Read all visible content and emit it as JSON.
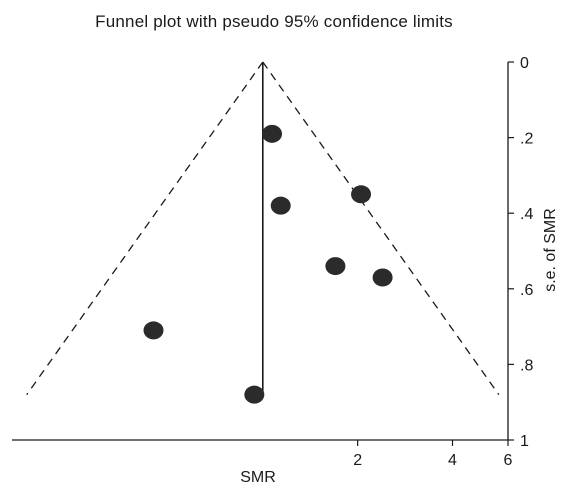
{
  "chart_data": {
    "type": "scatter",
    "title": "Funnel plot with pseudo 95% confidence limits",
    "xlabel": "SMR",
    "ylabel": "s.e. of SMR",
    "x_scale": "log",
    "xlim": [
      0.16,
      6
    ],
    "ylim": [
      0,
      1
    ],
    "y_reversed": true,
    "x_ticks": [
      2,
      4,
      6
    ],
    "y_ticks": [
      "0",
      ".2",
      ".4",
      ".6",
      ".8",
      "1"
    ],
    "y_tick_values": [
      0,
      0.2,
      0.4,
      0.6,
      0.8,
      1
    ],
    "pooled_estimate": 1.0,
    "confidence_limits_max_se": 0.88,
    "grid": false,
    "legend": "none",
    "points": [
      {
        "x": 1.07,
        "y": 0.19
      },
      {
        "x": 1.14,
        "y": 0.38
      },
      {
        "x": 2.05,
        "y": 0.35
      },
      {
        "x": 1.7,
        "y": 0.54
      },
      {
        "x": 2.4,
        "y": 0.57
      },
      {
        "x": 0.45,
        "y": 0.71
      },
      {
        "x": 0.94,
        "y": 0.88
      }
    ],
    "colors": {
      "points": "#2b2b2b",
      "lines": "#1a1a1a"
    }
  }
}
